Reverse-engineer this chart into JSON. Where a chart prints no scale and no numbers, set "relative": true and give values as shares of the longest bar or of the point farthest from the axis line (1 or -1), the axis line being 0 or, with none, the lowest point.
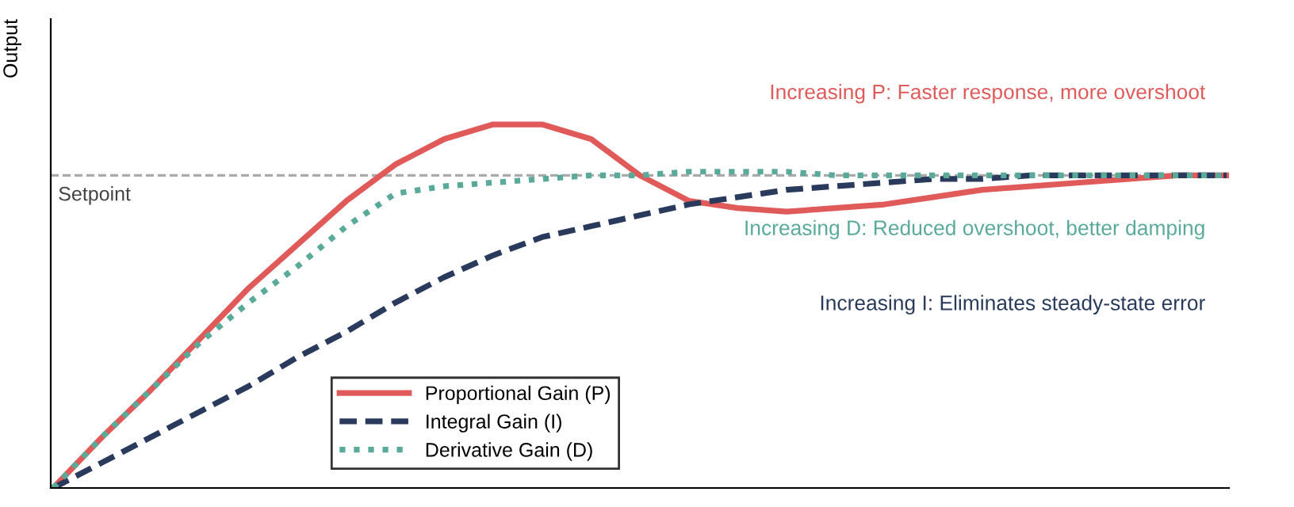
{
  "chart_data": {
    "type": "line",
    "relative": true,
    "ylabel": "Output",
    "categories": [
      null,
      null,
      null,
      null,
      null,
      null,
      null,
      null,
      null,
      null,
      null,
      null,
      null,
      null,
      null,
      null,
      null,
      null,
      null,
      null,
      null,
      null,
      null,
      null,
      null
    ],
    "series": [
      {
        "name": "Proportional Gain (P)",
        "color": "#e05a5a",
        "line_style": "solid",
        "values": [
          0,
          0.14,
          0.27,
          0.41,
          0.55,
          0.67,
          0.79,
          0.89,
          0.96,
          1.0,
          1.0,
          0.96,
          0.86,
          0.79,
          0.77,
          0.76,
          0.77,
          0.78,
          0.8,
          0.82,
          0.83,
          0.84,
          0.85,
          0.86,
          0.86
        ]
      },
      {
        "name": "Integral Gain (I)",
        "color": "#2a3a5c",
        "line_style": "dashed",
        "values": [
          0,
          0.07,
          0.14,
          0.21,
          0.28,
          0.36,
          0.43,
          0.51,
          0.58,
          0.64,
          0.69,
          0.72,
          0.75,
          0.78,
          0.8,
          0.82,
          0.83,
          0.84,
          0.85,
          0.85,
          0.86,
          0.86,
          0.86,
          0.86,
          0.86
        ]
      },
      {
        "name": "Derivative Gain (D)",
        "color": "#5aaa9a",
        "line_style": "dotted",
        "values": [
          0,
          0.14,
          0.27,
          0.4,
          0.51,
          0.61,
          0.72,
          0.81,
          0.83,
          0.84,
          0.85,
          0.86,
          0.86,
          0.87,
          0.87,
          0.87,
          0.86,
          0.86,
          0.86,
          0.86,
          0.86,
          0.86,
          0.86,
          0.86,
          0.86
        ]
      }
    ],
    "ref_lines": [
      {
        "axis": "y",
        "value": 0.86,
        "label": "Setpoint",
        "color": "#aaaaaa",
        "line_style": "dashed"
      }
    ],
    "annotations": [
      "Increasing P: Faster response, more overshoot",
      "Increasing D: Reduced overshoot, better damping",
      "Increasing I: Eliminates steady-state error"
    ],
    "legend": "bottom",
    "marker": "none"
  }
}
